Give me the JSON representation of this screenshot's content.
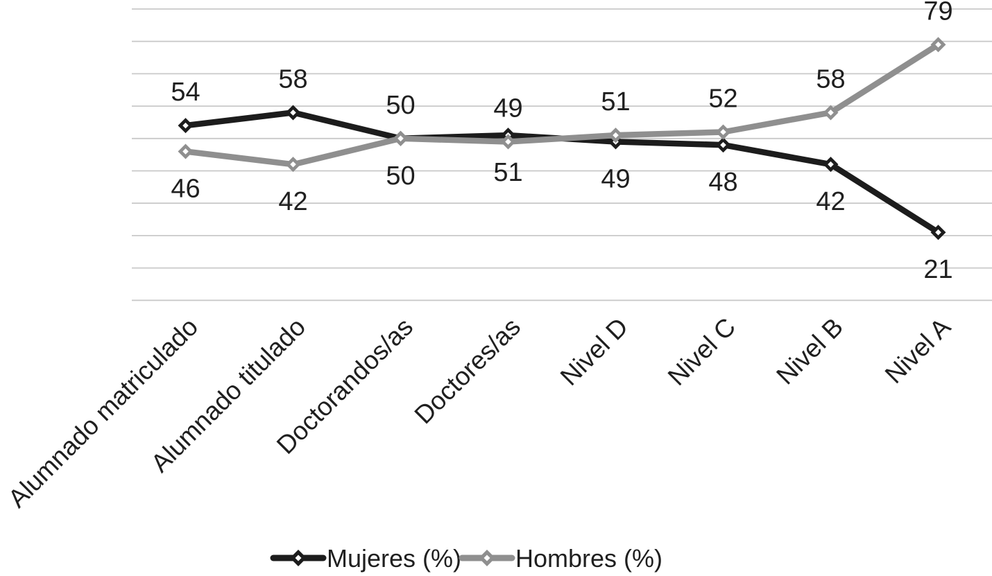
{
  "chart_data": {
    "type": "line",
    "title": "",
    "xlabel": "",
    "ylabel": "",
    "categories": [
      "Alumnado matriculado",
      "Alumnado titulado",
      "Doctorandos/as",
      "Doctores/as",
      "Nivel D",
      "Nivel C",
      "Nivel B",
      "Nivel A"
    ],
    "series": [
      {
        "name": "Mujeres (%)",
        "color": "#1c1c1c",
        "marker": "diamond",
        "values": [
          54,
          58,
          50,
          51,
          49,
          48,
          42,
          21
        ],
        "label_side": [
          "above",
          "above",
          "above",
          "below",
          "below",
          "below",
          "below",
          "below"
        ]
      },
      {
        "name": "Hombres (%)",
        "color": "#8f8f8f",
        "marker": "diamond",
        "values": [
          46,
          42,
          50,
          49,
          51,
          52,
          58,
          79
        ],
        "label_side": [
          "below",
          "below",
          "below",
          "above",
          "above",
          "above",
          "above",
          "above"
        ]
      }
    ],
    "data_labels_above": [
      54,
      58,
      50,
      49,
      51,
      52,
      58,
      79
    ],
    "data_labels_below": [
      46,
      42,
      50,
      51,
      49,
      48,
      42,
      21
    ],
    "ylim": [
      0,
      90
    ],
    "grid_step": 10,
    "grid": "horizontal-only",
    "y_tick_labels_visible": false,
    "legend_position": "bottom",
    "colors": {
      "gridline": "#c9c9c9",
      "text": "#1f1f1f",
      "background": "#ffffff"
    }
  }
}
